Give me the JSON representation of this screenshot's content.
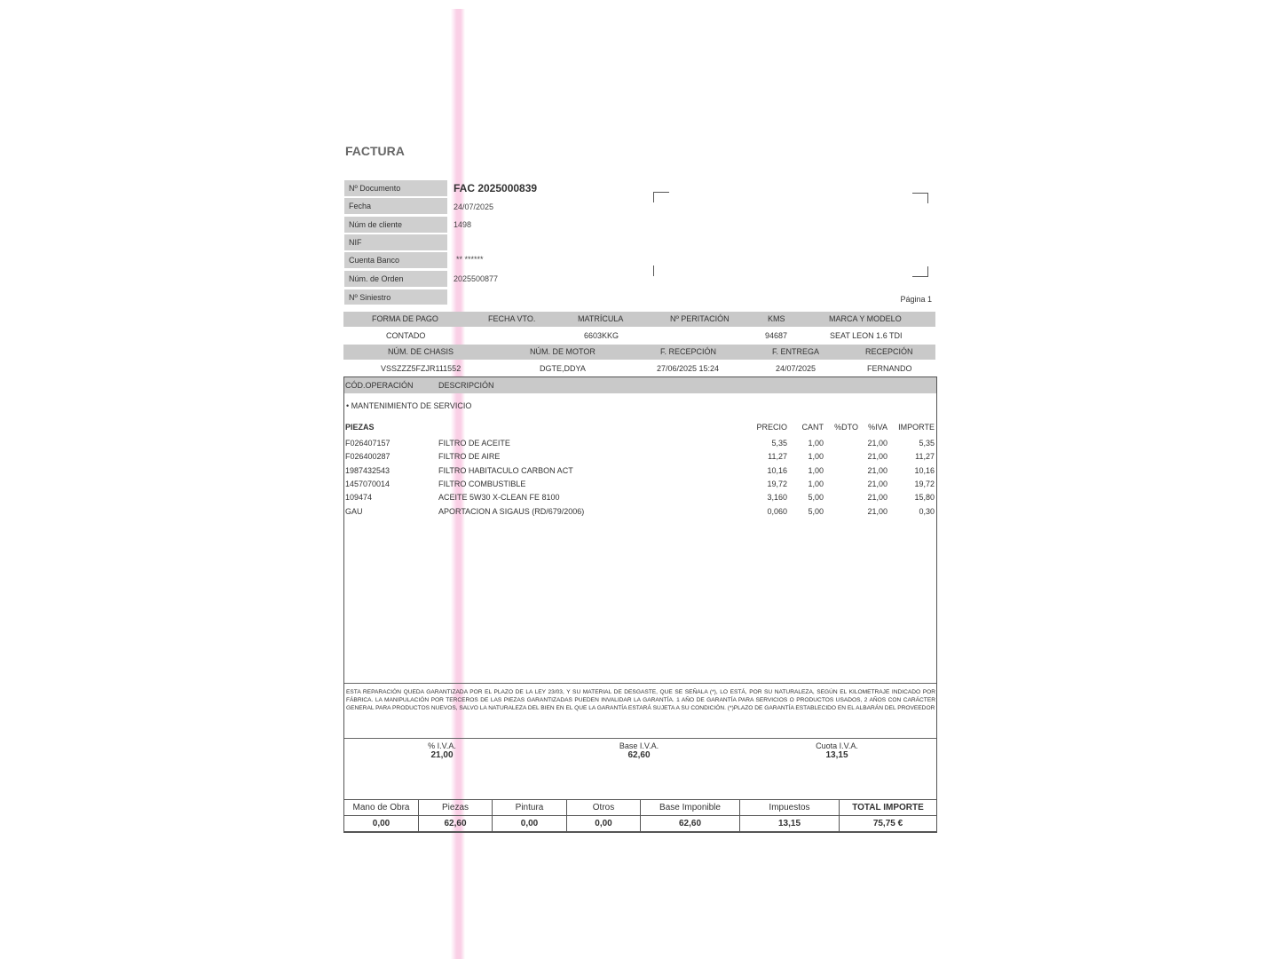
{
  "title": "FACTURA",
  "header": {
    "labels": [
      "Nº Documento",
      "Fecha",
      "Núm de cliente",
      "NIF",
      "Cuenta Banco",
      "Núm. de Orden",
      "Nº Siniestro"
    ],
    "documento": "FAC 2025000839",
    "fecha": "24/07/2025",
    "cliente": "1498",
    "nif": "",
    "cuenta": "** ******",
    "orden": "2025500877",
    "siniestro": "",
    "page": "Página 1"
  },
  "vehicle": {
    "headers1": [
      "FORMA DE PAGO",
      "FECHA VTO.",
      "MATRÍCULA",
      "Nº PERITACIÓN",
      "KMS",
      "MARCA Y MODELO"
    ],
    "values1": [
      "CONTADO",
      "",
      "6603KKG",
      "",
      "94687",
      "SEAT LEON 1.6 TDI"
    ],
    "headers2": [
      "NÚM. DE CHASIS",
      "NÚM. DE MOTOR",
      "F. RECEPCIÓN",
      "F. ENTREGA",
      "RECEPCIÓN"
    ],
    "values2": [
      "VSSZZZ5FZJR111552",
      "DGTE,DDYA",
      "27/06/2025 15:24",
      "24/07/2025",
      "FERNANDO"
    ]
  },
  "operations": {
    "headers": [
      "CÓD.OPERACIÓN",
      "DESCRIPCIÓN"
    ],
    "service": "• MANTENIMIENTO DE SERVICIO",
    "parts_header": [
      "PIEZAS",
      "PRECIO",
      "CANT",
      "%DTO",
      "%IVA",
      "IMPORTE"
    ],
    "parts": [
      {
        "code": "F026407157",
        "desc": "FILTRO DE ACEITE",
        "precio": "5,35",
        "cant": "1,00",
        "dto": "",
        "iva": "21,00",
        "importe": "5,35"
      },
      {
        "code": "F026400287",
        "desc": "FILTRO DE AIRE",
        "precio": "11,27",
        "cant": "1,00",
        "dto": "",
        "iva": "21,00",
        "importe": "11,27"
      },
      {
        "code": "1987432543",
        "desc": "FILTRO HABITACULO CARBON ACT",
        "precio": "10,16",
        "cant": "1,00",
        "dto": "",
        "iva": "21,00",
        "importe": "10,16"
      },
      {
        "code": "1457070014",
        "desc": "FILTRO COMBUSTIBLE",
        "precio": "19,72",
        "cant": "1,00",
        "dto": "",
        "iva": "21,00",
        "importe": "19,72"
      },
      {
        "code": "109474",
        "desc": "ACEITE 5W30 X-CLEAN FE 8100",
        "precio": "3,160",
        "cant": "5,00",
        "dto": "",
        "iva": "21,00",
        "importe": "15,80"
      },
      {
        "code": "GAU",
        "desc": "APORTACION A SIGAUS (RD/679/2006)",
        "precio": "0,060",
        "cant": "5,00",
        "dto": "",
        "iva": "21,00",
        "importe": "0,30"
      }
    ]
  },
  "warranty": "ESTA REPARACIÓN QUEDA GARANTIZADA POR EL PLAZO DE LA LEY 23/03, Y SU MATERIAL DE DESGASTE, QUE SE SEÑALA (*), LO ESTÁ, POR SU NATURALEZA, SEGÚN EL KILOMETRAJE INDICADO POR FÁBRICA. LA MANIPULACIÓN POR TERCEROS DE LAS PIEZAS GARANTIZADAS PUEDEN INVALIDAR LA GARANTÍA. 1 AÑO DE GARANTÍA PARA SERVICIOS O PRODUCTOS USADOS, 2 AÑOS CON CARÁCTER GENERAL PARA PRODUCTOS NUEVOS, SALVO LA NATURALEZA DEL BIEN EN EL QUE LA GARANTÍA ESTARÁ SUJETA A SU CONDICIÓN. (*)PLAZO DE GARANTÍA ESTABLECIDO EN EL ALBARÁN DEL PROVEEDOR",
  "iva_summary": {
    "labels": [
      "% I.V.A.",
      "Base I.V.A.",
      "Cuota I.V.A."
    ],
    "values": [
      "21,00",
      "62,60",
      "13,15"
    ]
  },
  "totals": {
    "labels": [
      "Mano de Obra",
      "Piezas",
      "Pintura",
      "Otros",
      "Base Imponible",
      "Impuestos",
      "TOTAL IMPORTE"
    ],
    "values": [
      "0,00",
      "62,60",
      "0,00",
      "0,00",
      "62,60",
      "13,15",
      "75,75 €"
    ]
  }
}
